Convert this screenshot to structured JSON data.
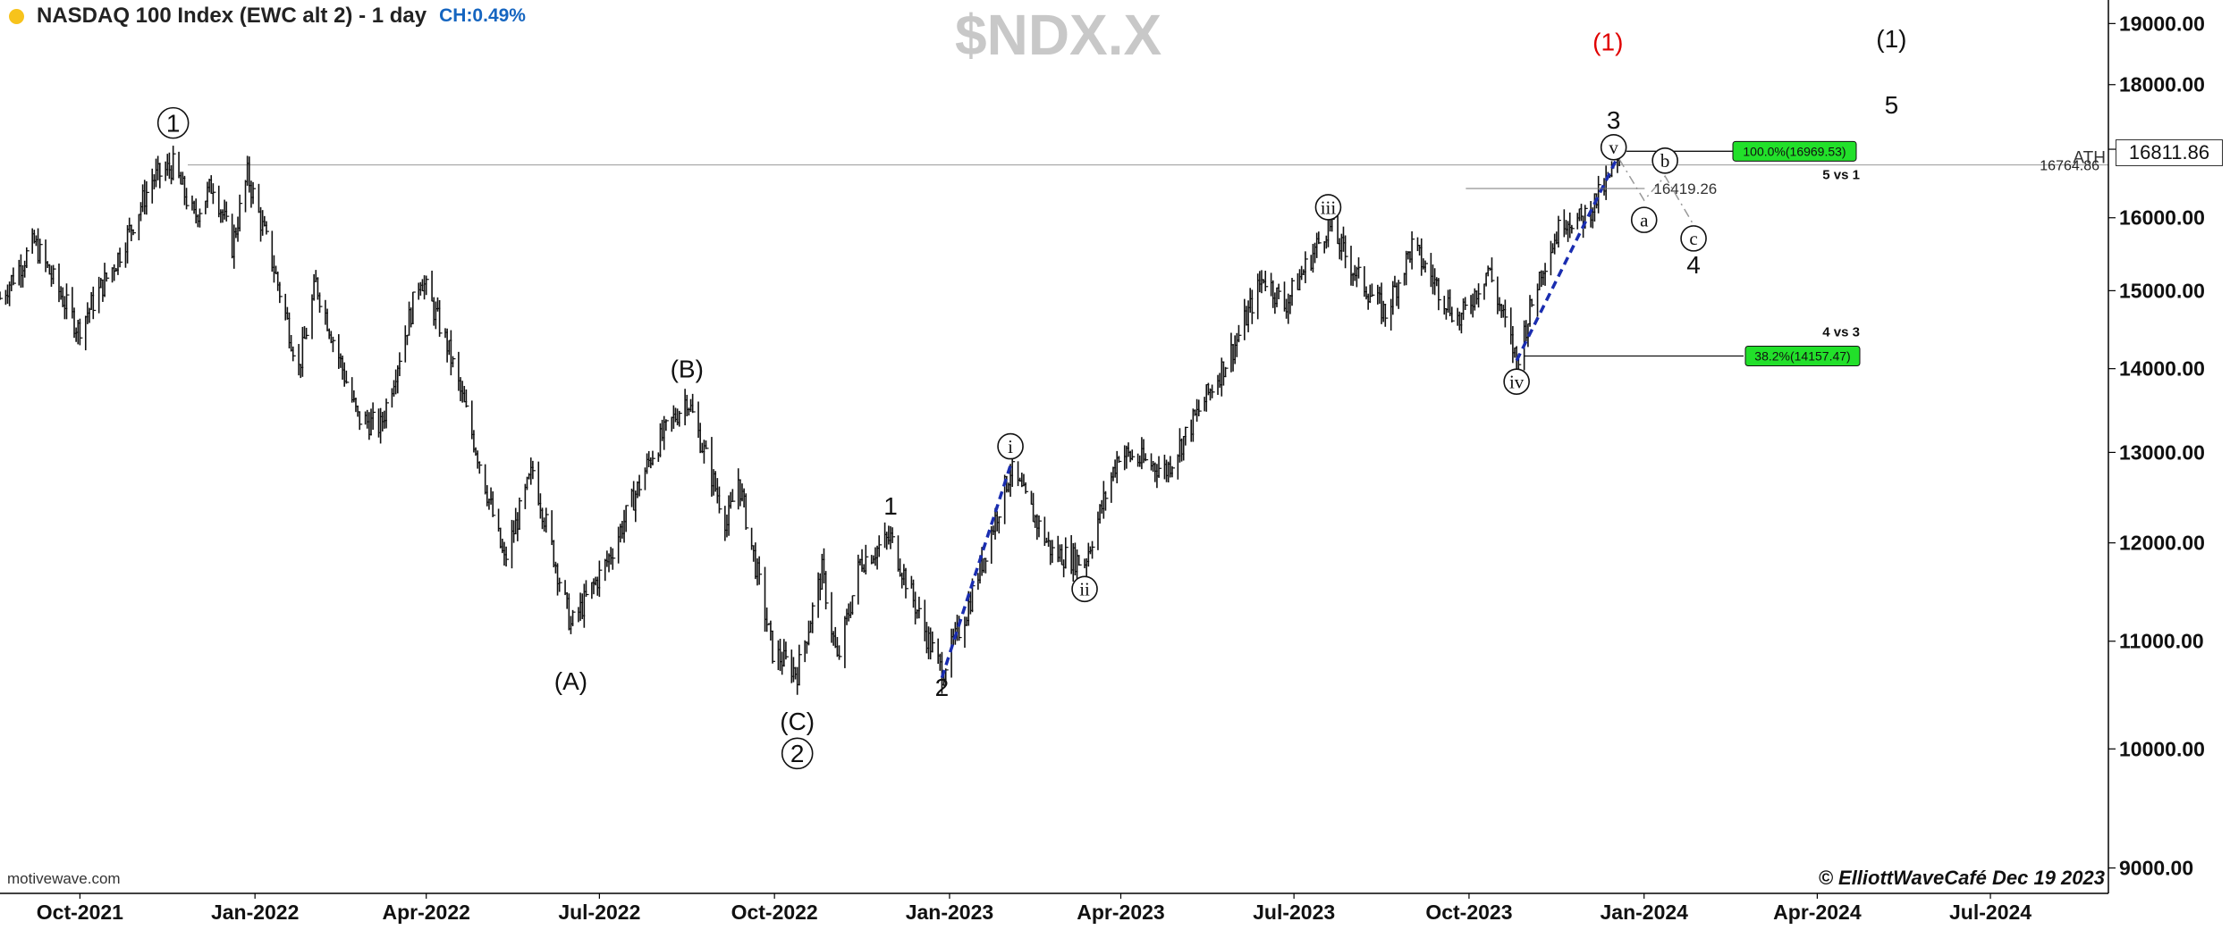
{
  "header": {
    "title": "NASDAQ 100 Index (EWC alt 2) - 1 day",
    "change": "CH:0.49%",
    "symbol": "$NDX.X"
  },
  "footer": {
    "source": "motivewave.com",
    "credit": "© ElliottWaveCafé Dec 19 2023"
  },
  "price_tag": "16811.86",
  "colors": {
    "bars": "#111111",
    "projection": "#1a2db0",
    "fib_box": "#22e02a",
    "label_red": "#e00000",
    "axis": "#000000"
  },
  "chart_data": {
    "type": "bar",
    "title": "NASDAQ 100 Index (EWC alt 2) - 1 day",
    "x_range": [
      "2021-08-20",
      "2024-09-01"
    ],
    "x_ticks": [
      {
        "date": "2021-10-01",
        "label": "Oct-2021"
      },
      {
        "date": "2022-01-01",
        "label": "Jan-2022"
      },
      {
        "date": "2022-04-01",
        "label": "Apr-2022"
      },
      {
        "date": "2022-07-01",
        "label": "Jul-2022"
      },
      {
        "date": "2022-10-01",
        "label": "Oct-2022"
      },
      {
        "date": "2023-01-01",
        "label": "Jan-2023"
      },
      {
        "date": "2023-04-01",
        "label": "Apr-2023"
      },
      {
        "date": "2023-07-01",
        "label": "Jul-2023"
      },
      {
        "date": "2023-10-01",
        "label": "Oct-2023"
      },
      {
        "date": "2024-01-01",
        "label": "Jan-2024"
      },
      {
        "date": "2024-04-01",
        "label": "Apr-2024"
      },
      {
        "date": "2024-07-01",
        "label": "Jul-2024"
      }
    ],
    "y_scale": "log",
    "y_range": [
      8800,
      19400
    ],
    "y_ticks": [
      "9000.00",
      "10000.00",
      "11000.00",
      "12000.00",
      "13000.00",
      "14000.00",
      "15000.00",
      "16000.00",
      "17000.00",
      "18000.00",
      "19000.00"
    ],
    "series": [
      {
        "path": [
          [
            "2021-08-20",
            14900
          ],
          [
            "2021-09-07",
            15650
          ],
          [
            "2021-09-30",
            14500
          ],
          [
            "2021-10-20",
            15400
          ],
          [
            "2021-11-08",
            16550
          ],
          [
            "2021-11-19",
            16750
          ],
          [
            "2021-11-30",
            16000
          ],
          [
            "2021-12-10",
            16500
          ],
          [
            "2021-12-20",
            15600
          ],
          [
            "2021-12-28",
            16620
          ],
          [
            "2022-01-10",
            15400
          ],
          [
            "2022-01-24",
            14000
          ],
          [
            "2022-02-02",
            15100
          ],
          [
            "2022-02-24",
            13400
          ],
          [
            "2022-03-08",
            13300
          ],
          [
            "2022-03-29",
            15200
          ],
          [
            "2022-04-12",
            14300
          ],
          [
            "2022-04-29",
            12900
          ],
          [
            "2022-05-12",
            11800
          ],
          [
            "2022-05-27",
            12800
          ],
          [
            "2022-06-16",
            11150
          ],
          [
            "2022-07-05",
            11800
          ],
          [
            "2022-07-29",
            13000
          ],
          [
            "2022-08-16",
            13650
          ],
          [
            "2022-09-06",
            12200
          ],
          [
            "2022-09-12",
            12700
          ],
          [
            "2022-09-30",
            10900
          ],
          [
            "2022-10-13",
            10700
          ],
          [
            "2022-10-26",
            11700
          ],
          [
            "2022-11-03",
            10800
          ],
          [
            "2022-11-15",
            11800
          ],
          [
            "2022-12-01",
            12050
          ],
          [
            "2022-12-20",
            11050
          ],
          [
            "2022-12-28",
            10700
          ],
          [
            "2023-01-10",
            11300
          ],
          [
            "2023-02-02",
            12800
          ],
          [
            "2023-02-24",
            11900
          ],
          [
            "2023-03-13",
            11800
          ],
          [
            "2023-03-31",
            13000
          ],
          [
            "2023-04-25",
            12800
          ],
          [
            "2023-05-31",
            14300
          ],
          [
            "2023-06-15",
            15200
          ],
          [
            "2023-06-26",
            14800
          ],
          [
            "2023-07-19",
            15900
          ],
          [
            "2023-08-03",
            15200
          ],
          [
            "2023-08-18",
            14700
          ],
          [
            "2023-09-01",
            15600
          ],
          [
            "2023-09-26",
            14600
          ],
          [
            "2023-10-11",
            15300
          ],
          [
            "2023-10-26",
            14100
          ],
          [
            "2023-11-08",
            15300
          ],
          [
            "2023-11-20",
            16000
          ],
          [
            "2023-11-29",
            15950
          ],
          [
            "2023-12-08",
            16300
          ],
          [
            "2023-12-19",
            16800
          ]
        ]
      }
    ],
    "annotations": {
      "reference_lines": [
        {
          "y": 16764.86,
          "label": "16764.86",
          "tag": "ATH"
        }
      ],
      "fib_lines": [
        {
          "x_start": "2023-12-19",
          "y": 16969.53,
          "label": "100.0%(16969.53)",
          "caption": "5 vs 1"
        },
        {
          "x_start": "2023-10-26",
          "y": 14157.47,
          "label": "38.2%(14157.47)",
          "caption": "4 vs 3"
        }
      ],
      "price_labels": [
        {
          "x": "2024-01-06",
          "y": 16419.26,
          "label": "16419.26"
        }
      ],
      "projection_lines": [
        {
          "from": [
            "2023-10-26",
            14100
          ],
          "to": [
            "2023-12-21",
            17050
          ]
        },
        {
          "from": [
            "2022-12-28",
            10650
          ],
          "to": [
            "2023-02-02",
            12850
          ]
        }
      ],
      "path_abc": [
        [
          "2023-12-19",
          16850
        ],
        [
          "2024-01-01",
          16250
        ],
        [
          "2024-01-12",
          16600
        ],
        [
          "2024-01-27",
          15900
        ]
      ],
      "wave_labels": [
        {
          "text": "1",
          "date": "2021-11-19",
          "price": 17400,
          "circled": true,
          "style": "large"
        },
        {
          "text": "(A)",
          "date": "2022-06-16",
          "price": 10620,
          "circled": false,
          "style": "large"
        },
        {
          "text": "(B)",
          "date": "2022-08-16",
          "price": 14000,
          "circled": false,
          "style": "large"
        },
        {
          "text": "(C)",
          "date": "2022-10-13",
          "price": 10250,
          "circled": false,
          "style": "large"
        },
        {
          "text": "2",
          "date": "2022-10-13",
          "price": 9960,
          "circled": true,
          "style": "large"
        },
        {
          "text": "1",
          "date": "2022-12-01",
          "price": 12400,
          "circled": false,
          "style": "large"
        },
        {
          "text": "2",
          "date": "2022-12-28",
          "price": 10560,
          "circled": false,
          "style": "large"
        },
        {
          "text": "i",
          "date": "2023-02-02",
          "price": 13070,
          "circled": true,
          "style": "small"
        },
        {
          "text": "ii",
          "date": "2023-03-13",
          "price": 11520,
          "circled": true,
          "style": "small"
        },
        {
          "text": "iii",
          "date": "2023-07-19",
          "price": 16150,
          "circled": true,
          "style": "small"
        },
        {
          "text": "iv",
          "date": "2023-10-26",
          "price": 13840,
          "circled": true,
          "style": "small"
        },
        {
          "text": "v",
          "date": "2023-12-16",
          "price": 17030,
          "circled": true,
          "style": "small"
        },
        {
          "text": "3",
          "date": "2023-12-16",
          "price": 17450,
          "circled": false,
          "style": "large"
        },
        {
          "text": "a",
          "date": "2024-01-01",
          "price": 15970,
          "circled": true,
          "style": "small"
        },
        {
          "text": "b",
          "date": "2024-01-12",
          "price": 16830,
          "circled": true,
          "style": "small"
        },
        {
          "text": "c",
          "date": "2024-01-27",
          "price": 15710,
          "circled": true,
          "style": "small"
        },
        {
          "text": "4",
          "date": "2024-01-27",
          "price": 15350,
          "circled": false,
          "style": "large"
        },
        {
          "text": "(1)",
          "date": "2023-12-13",
          "price": 18700,
          "circled": false,
          "style": "red"
        },
        {
          "text": "(1)",
          "date": "2024-05-10",
          "price": 18750,
          "circled": false,
          "style": "large"
        },
        {
          "text": "5",
          "date": "2024-05-10",
          "price": 17680,
          "circled": false,
          "style": "large"
        }
      ]
    }
  }
}
